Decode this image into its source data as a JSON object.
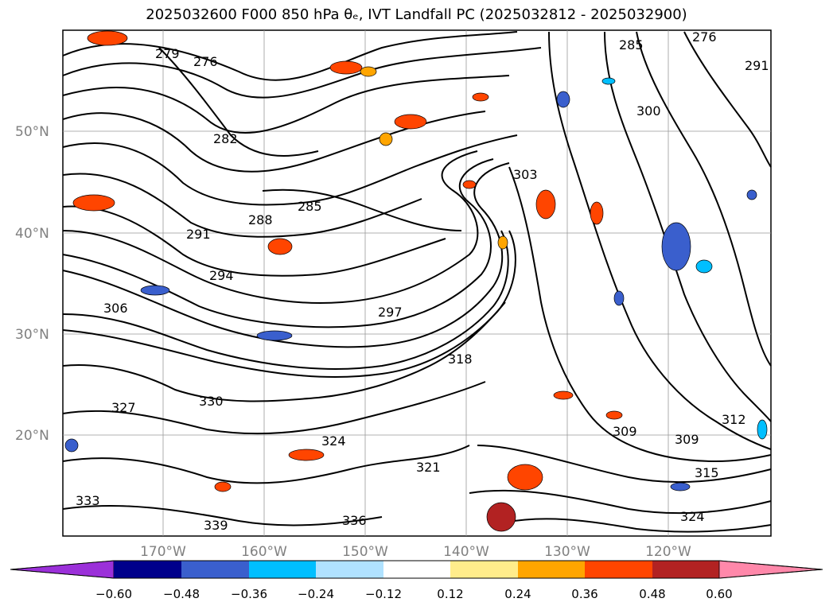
{
  "title": "2025032600 F000 850 hPa θₑ, IVT Landfall PC (2025032812 - 2025032900)",
  "map": {
    "lat_labels": [
      "50°N",
      "40°N",
      "30°N",
      "20°N"
    ],
    "lon_labels": [
      "170°W",
      "160°W",
      "150°W",
      "140°W",
      "130°W",
      "120°W"
    ],
    "contour_labels": [
      "279",
      "276",
      "282",
      "285",
      "288",
      "291",
      "294",
      "297",
      "300",
      "303",
      "306",
      "309",
      "309",
      "312",
      "315",
      "318",
      "321",
      "324",
      "327",
      "330",
      "333",
      "336",
      "339",
      "276",
      "285",
      "291",
      "324"
    ]
  },
  "colorbar": {
    "colors": [
      "#9b30d9",
      "#00008b",
      "#3a5fcd",
      "#00bfff",
      "#b0e2ff",
      "#ffffff",
      "#ffec8b",
      "#ffa500",
      "#ff4500",
      "#b22222",
      "#ff88aa"
    ],
    "tick_labels": [
      "−0.60",
      "−0.48",
      "−0.36",
      "−0.24",
      "−0.12",
      "0.12",
      "0.24",
      "0.36",
      "0.48",
      "0.60"
    ]
  }
}
